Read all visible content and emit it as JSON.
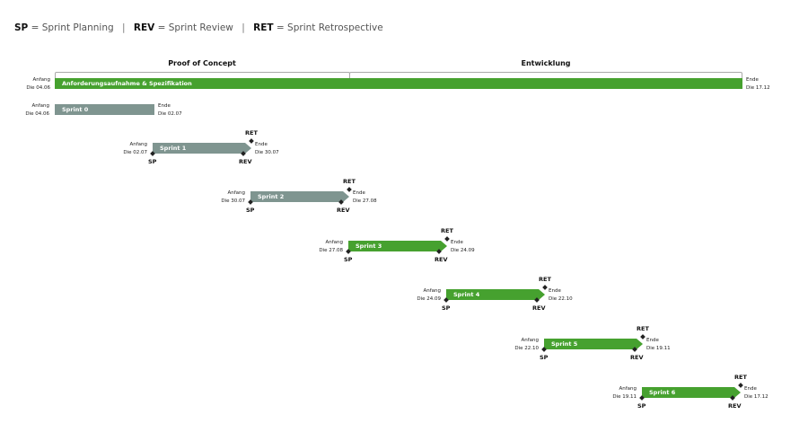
{
  "legend": {
    "sp_abbr": "SP",
    "sp_text": "= Sprint Planning",
    "rev_abbr": "REV",
    "rev_text": "= Sprint Review",
    "ret_abbr": "RET",
    "ret_text": "= Sprint Retrospective",
    "separator": "|"
  },
  "phases": [
    {
      "name": "Proof of Concept"
    },
    {
      "name": "Entwicklung"
    }
  ],
  "main_task": {
    "label": "Anforderungsaufnahme & Spezifikation",
    "start_label": "Anfang",
    "start_date": "Die 04.06",
    "end_label": "Ende",
    "end_date": "Die 17.12",
    "color": "#46a12f"
  },
  "sprints": [
    {
      "name": "Sprint 0",
      "start_label": "Anfang",
      "start_date": "Die 04.06",
      "end_label": "Ende",
      "end_date": "Die 02.07",
      "color": "#7f9590",
      "milestones": false
    },
    {
      "name": "Sprint 1",
      "start_label": "Anfang",
      "start_date": "Die 02.07",
      "end_label": "Ende",
      "end_date": "Die 30.07",
      "color": "#7f9590",
      "milestones": true
    },
    {
      "name": "Sprint 2",
      "start_label": "Anfang",
      "start_date": "Die 30.07",
      "end_label": "Ende",
      "end_date": "Die 27.08",
      "color": "#7f9590",
      "milestones": true
    },
    {
      "name": "Sprint 3",
      "start_label": "Anfang",
      "start_date": "Die 27.08",
      "end_label": "Ende",
      "end_date": "Die 24.09",
      "color": "#46a12f",
      "milestones": true
    },
    {
      "name": "Sprint 4",
      "start_label": "Anfang",
      "start_date": "Die 24.09",
      "end_label": "Ende",
      "end_date": "Die 22.10",
      "color": "#46a12f",
      "milestones": true
    },
    {
      "name": "Sprint 5",
      "start_label": "Anfang",
      "start_date": "Die 22.10",
      "end_label": "Ende",
      "end_date": "Die 19.11",
      "color": "#46a12f",
      "milestones": true
    },
    {
      "name": "Sprint 6",
      "start_label": "Anfang",
      "start_date": "Die 19.11",
      "end_label": "Ende",
      "end_date": "Die 17.12",
      "color": "#46a12f",
      "milestones": true
    }
  ],
  "milestone_labels": {
    "sp": "SP",
    "rev": "REV",
    "ret": "RET"
  }
}
